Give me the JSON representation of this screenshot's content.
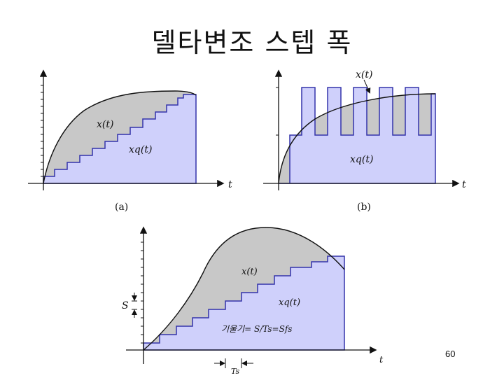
{
  "slide": {
    "title": "델타변조 스텝 폭",
    "page_number": "60"
  },
  "panel_a": {
    "caption": "(a)",
    "axis_label": "t",
    "signal_label": "x(t)",
    "staircase_label": "xq(t)"
  },
  "panel_b": {
    "caption": "(b)",
    "axis_label": "t",
    "signal_label": "x(t)",
    "staircase_label": "xq(t)"
  },
  "panel_c": {
    "axis_label": "t",
    "signal_label": "x(t)",
    "staircase_label": "xq(t)",
    "slope_label": "기울기= S/Ts=Sfs",
    "step_label": "S",
    "period_label": "Ts"
  },
  "colors": {
    "signal_fill": "#c8c8c8",
    "staircase_fill": "#cfd0fb",
    "staircase_line": "#3333aa",
    "axis": "#111111"
  }
}
